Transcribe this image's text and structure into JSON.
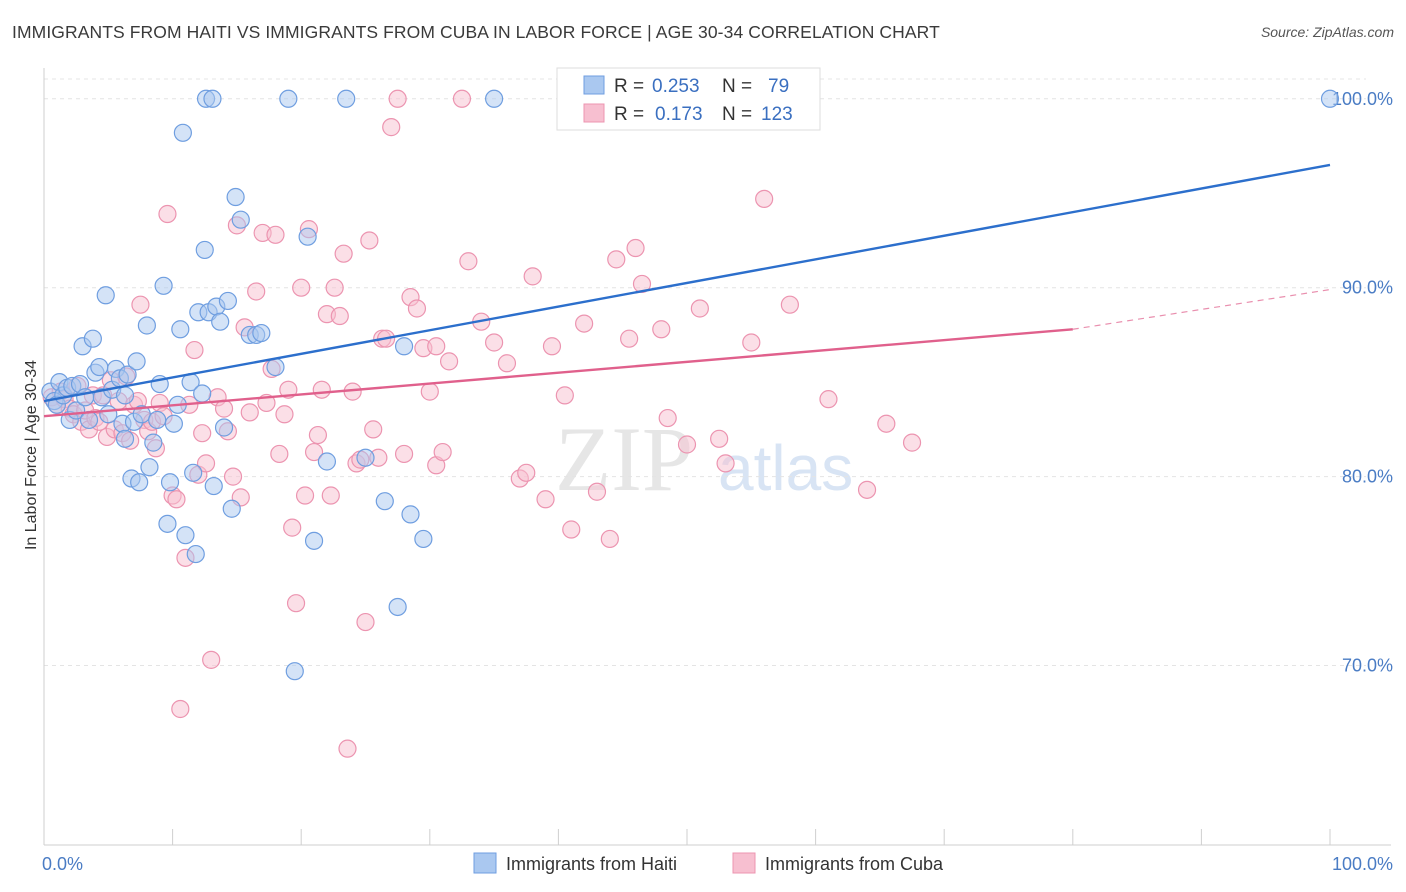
{
  "title": "IMMIGRANTS FROM HAITI VS IMMIGRANTS FROM CUBA IN LABOR FORCE | AGE 30-34 CORRELATION CHART",
  "source": "Source: ZipAtlas.com",
  "watermark": {
    "zip": "ZIP",
    "atlas": "atlas"
  },
  "chart_data": {
    "type": "scatter",
    "title": "IMMIGRANTS FROM HAITI VS IMMIGRANTS FROM CUBA IN LABOR FORCE | AGE 30-34 CORRELATION CHART",
    "xlabel": "",
    "ylabel": "In Labor Force | Age 30-34",
    "xlim": [
      0,
      100
    ],
    "ylim": [
      60.5,
      102
    ],
    "x_tick_labels": [
      "0.0%",
      "100.0%"
    ],
    "y_ticks": [
      70,
      80,
      90,
      100
    ],
    "y_tick_labels": [
      "70.0%",
      "80.0%",
      "90.0%",
      "100.0%"
    ],
    "grid": true,
    "legend": {
      "position": "top-center",
      "rows": [
        {
          "r_label": "R =",
          "r_value": "0.253",
          "n_label": "N =",
          "n_value": "79"
        },
        {
          "r_label": "R =",
          "r_value": "0.173",
          "n_label": "N =",
          "n_value": "123"
        }
      ]
    },
    "series": [
      {
        "name": "Immigrants from Haiti",
        "color": "#6f9ee0",
        "fill": "#aac8f0",
        "line_color": "#2c6fcc",
        "trend": {
          "x": [
            0,
            100
          ],
          "y": [
            84.0,
            96.5
          ],
          "dashed_after": null
        },
        "points": [
          [
            0.5,
            84.5
          ],
          [
            0.8,
            84.0
          ],
          [
            1.0,
            83.8
          ],
          [
            1.2,
            85.0
          ],
          [
            1.5,
            84.3
          ],
          [
            1.8,
            84.7
          ],
          [
            2.0,
            83.0
          ],
          [
            2.2,
            84.8
          ],
          [
            2.5,
            83.5
          ],
          [
            2.8,
            84.9
          ],
          [
            3.0,
            86.9
          ],
          [
            3.2,
            84.2
          ],
          [
            3.5,
            83.0
          ],
          [
            3.8,
            87.3
          ],
          [
            4.0,
            85.5
          ],
          [
            4.3,
            85.8
          ],
          [
            4.5,
            84.2
          ],
          [
            4.8,
            89.6
          ],
          [
            5.0,
            83.3
          ],
          [
            5.3,
            84.6
          ],
          [
            5.6,
            85.7
          ],
          [
            5.9,
            85.2
          ],
          [
            6.1,
            82.8
          ],
          [
            6.3,
            82.0
          ],
          [
            6.5,
            85.4
          ],
          [
            6.8,
            79.9
          ],
          [
            7.0,
            82.9
          ],
          [
            7.2,
            86.1
          ],
          [
            7.4,
            79.7
          ],
          [
            7.6,
            83.3
          ],
          [
            8.0,
            88.0
          ],
          [
            8.2,
            80.5
          ],
          [
            8.5,
            81.8
          ],
          [
            8.8,
            83.0
          ],
          [
            9.0,
            84.9
          ],
          [
            9.3,
            90.1
          ],
          [
            9.6,
            77.5
          ],
          [
            9.8,
            79.7
          ],
          [
            10.1,
            82.8
          ],
          [
            10.4,
            83.8
          ],
          [
            10.6,
            87.8
          ],
          [
            10.8,
            98.2
          ],
          [
            11.0,
            76.9
          ],
          [
            11.4,
            85.0
          ],
          [
            11.6,
            80.2
          ],
          [
            11.8,
            75.9
          ],
          [
            12.0,
            88.7
          ],
          [
            12.3,
            84.4
          ],
          [
            12.5,
            92.0
          ],
          [
            12.8,
            88.7
          ],
          [
            13.2,
            79.5
          ],
          [
            13.4,
            89.0
          ],
          [
            13.7,
            88.2
          ],
          [
            14.0,
            82.6
          ],
          [
            14.3,
            89.3
          ],
          [
            14.6,
            78.3
          ],
          [
            14.9,
            94.8
          ],
          [
            15.3,
            93.6
          ],
          [
            16.0,
            87.5
          ],
          [
            16.5,
            87.5
          ],
          [
            16.9,
            87.6
          ],
          [
            18.0,
            85.8
          ],
          [
            19.0,
            100.0
          ],
          [
            19.5,
            69.7
          ],
          [
            20.5,
            92.7
          ],
          [
            21.0,
            76.6
          ],
          [
            22.0,
            80.8
          ],
          [
            23.5,
            100.0
          ],
          [
            25.0,
            81.0
          ],
          [
            26.5,
            78.7
          ],
          [
            27.5,
            73.1
          ],
          [
            28.0,
            86.9
          ],
          [
            28.5,
            78.0
          ],
          [
            29.5,
            76.7
          ],
          [
            35.0,
            100.0
          ],
          [
            12.6,
            100.0
          ],
          [
            13.1,
            100.0
          ],
          [
            100.0,
            100.0
          ],
          [
            6.3,
            84.3
          ]
        ]
      },
      {
        "name": "Immigrants from Cuba",
        "color": "#ec94b0",
        "fill": "#f7bfd0",
        "line_color": "#e0608c",
        "trend": {
          "x": [
            0,
            80
          ],
          "y": [
            83.2,
            87.8
          ],
          "dashed_after": 80,
          "dashed_to": [
            100,
            89.9
          ]
        },
        "points": [
          [
            0.6,
            84.2
          ],
          [
            1.0,
            83.8
          ],
          [
            1.3,
            84.5
          ],
          [
            1.6,
            84.1
          ],
          [
            2.0,
            83.6
          ],
          [
            2.3,
            83.3
          ],
          [
            2.6,
            84.8
          ],
          [
            2.9,
            82.9
          ],
          [
            3.2,
            83.5
          ],
          [
            3.5,
            82.5
          ],
          [
            3.8,
            84.3
          ],
          [
            4.0,
            83.1
          ],
          [
            4.3,
            82.9
          ],
          [
            4.6,
            84.3
          ],
          [
            4.9,
            82.1
          ],
          [
            5.2,
            85.1
          ],
          [
            5.5,
            82.5
          ],
          [
            5.8,
            84.0
          ],
          [
            6.1,
            82.3
          ],
          [
            6.4,
            85.3
          ],
          [
            6.7,
            81.9
          ],
          [
            7.0,
            83.8
          ],
          [
            7.3,
            84.0
          ],
          [
            7.5,
            89.1
          ],
          [
            7.8,
            83.0
          ],
          [
            8.1,
            82.4
          ],
          [
            8.4,
            82.9
          ],
          [
            8.7,
            81.5
          ],
          [
            9.0,
            83.9
          ],
          [
            9.3,
            83.2
          ],
          [
            9.6,
            93.9
          ],
          [
            10.0,
            79.0
          ],
          [
            10.3,
            78.8
          ],
          [
            10.6,
            67.7
          ],
          [
            11.0,
            75.7
          ],
          [
            11.3,
            83.8
          ],
          [
            11.7,
            86.7
          ],
          [
            12.0,
            80.1
          ],
          [
            12.3,
            82.3
          ],
          [
            12.6,
            80.7
          ],
          [
            13.0,
            70.3
          ],
          [
            13.5,
            84.2
          ],
          [
            14.0,
            83.6
          ],
          [
            14.3,
            82.4
          ],
          [
            14.7,
            80.0
          ],
          [
            15.0,
            93.3
          ],
          [
            15.3,
            78.9
          ],
          [
            15.6,
            87.9
          ],
          [
            16.0,
            83.4
          ],
          [
            16.5,
            89.8
          ],
          [
            17.0,
            92.9
          ],
          [
            17.3,
            83.9
          ],
          [
            17.7,
            85.7
          ],
          [
            18.0,
            92.8
          ],
          [
            18.3,
            81.2
          ],
          [
            18.7,
            83.3
          ],
          [
            19.0,
            84.6
          ],
          [
            19.3,
            77.3
          ],
          [
            19.6,
            73.3
          ],
          [
            20.0,
            90.0
          ],
          [
            20.3,
            79.0
          ],
          [
            20.6,
            93.1
          ],
          [
            21.0,
            81.3
          ],
          [
            21.3,
            82.2
          ],
          [
            21.6,
            84.6
          ],
          [
            22.0,
            88.6
          ],
          [
            22.3,
            79.0
          ],
          [
            22.6,
            90.0
          ],
          [
            23.0,
            88.5
          ],
          [
            23.3,
            91.8
          ],
          [
            23.6,
            65.6
          ],
          [
            24.0,
            84.5
          ],
          [
            24.3,
            80.7
          ],
          [
            24.6,
            80.9
          ],
          [
            25.0,
            72.3
          ],
          [
            25.3,
            92.5
          ],
          [
            25.6,
            82.5
          ],
          [
            26.0,
            81.0
          ],
          [
            26.3,
            87.3
          ],
          [
            26.6,
            87.3
          ],
          [
            27.0,
            98.5
          ],
          [
            27.5,
            100.0
          ],
          [
            28.0,
            81.2
          ],
          [
            28.5,
            89.5
          ],
          [
            29.0,
            88.9
          ],
          [
            29.5,
            86.8
          ],
          [
            30.0,
            84.5
          ],
          [
            30.5,
            80.6
          ],
          [
            31.0,
            81.3
          ],
          [
            31.5,
            86.1
          ],
          [
            32.5,
            100.0
          ],
          [
            33.0,
            91.4
          ],
          [
            34.0,
            88.2
          ],
          [
            35.0,
            87.1
          ],
          [
            36.0,
            86.0
          ],
          [
            37.0,
            79.9
          ],
          [
            37.5,
            80.2
          ],
          [
            38.0,
            90.6
          ],
          [
            39.0,
            78.8
          ],
          [
            39.5,
            86.9
          ],
          [
            40.5,
            84.3
          ],
          [
            41.0,
            77.2
          ],
          [
            42.0,
            88.1
          ],
          [
            43.0,
            79.2
          ],
          [
            44.0,
            76.7
          ],
          [
            44.5,
            91.5
          ],
          [
            45.5,
            87.3
          ],
          [
            46.0,
            92.1
          ],
          [
            46.5,
            90.2
          ],
          [
            48.0,
            87.8
          ],
          [
            48.5,
            83.1
          ],
          [
            50.0,
            81.7
          ],
          [
            51.0,
            88.9
          ],
          [
            52.5,
            82.0
          ],
          [
            53.0,
            80.7
          ],
          [
            55.0,
            87.1
          ],
          [
            56.0,
            94.7
          ],
          [
            58.0,
            89.1
          ],
          [
            61.0,
            84.1
          ],
          [
            64.0,
            79.3
          ],
          [
            65.5,
            82.8
          ],
          [
            67.5,
            81.8
          ],
          [
            30.5,
            86.9
          ]
        ]
      }
    ]
  },
  "bottom_legend": [
    {
      "label": "Immigrants from Haiti",
      "color": "#aac8f0",
      "border": "#6f9ee0"
    },
    {
      "label": "Immigrants from Cuba",
      "color": "#f7bfd0",
      "border": "#ec94b0"
    }
  ]
}
